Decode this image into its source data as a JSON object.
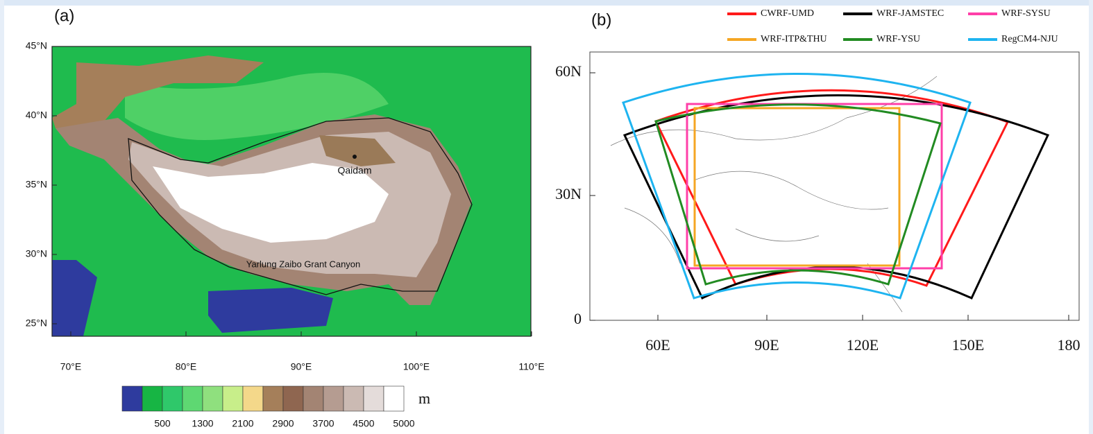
{
  "panel_a": {
    "label": "(a)",
    "lat_labels": [
      "45°N",
      "40°N",
      "35°N",
      "30°N",
      "25°N"
    ],
    "lon_labels": [
      "70°E",
      "80°E",
      "90°E",
      "100°E",
      "110°E"
    ],
    "annotations": [
      "Qaidam",
      "Yarlung Zaibo Grant Canyon"
    ],
    "colorbar": {
      "labels": [
        "500",
        "1300",
        "2100",
        "2900",
        "3700",
        "4500",
        "5000"
      ],
      "unit": "m",
      "colors": [
        "#2e3b9e",
        "#17b544",
        "#2fc86a",
        "#5ed872",
        "#8fe07e",
        "#c8ee8a",
        "#f4d88a",
        "#a57f5a",
        "#8f6650",
        "#a38473",
        "#b59c91",
        "#cbbab3",
        "#e4dcda",
        "#ffffff"
      ]
    }
  },
  "panel_b": {
    "label": "(b)",
    "lat_labels": [
      "60N",
      "30N",
      "0"
    ],
    "lon_labels": [
      "60E",
      "90E",
      "120E",
      "150E",
      "180"
    ],
    "domains": [
      {
        "name": "CWRF-UMD",
        "color": "#ff1a1a"
      },
      {
        "name": "WRF-JAMSTEC",
        "color": "#000000"
      },
      {
        "name": "WRF-SYSU",
        "color": "#ff3fa8"
      },
      {
        "name": "WRF-ITP&THU",
        "color": "#f5a623"
      },
      {
        "name": "WRF-YSU",
        "color": "#228b22"
      },
      {
        "name": "RegCM4-NJU",
        "color": "#1eb4f0"
      }
    ]
  }
}
